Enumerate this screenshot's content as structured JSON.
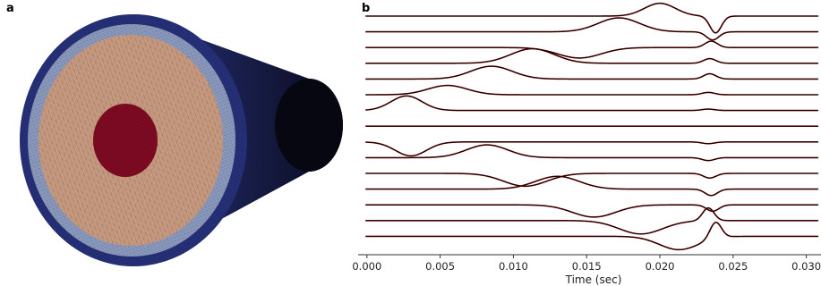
{
  "figure": {
    "panel_a_label": "a",
    "panel_b_label": "b"
  },
  "mesh": {
    "layers": [
      {
        "name": "outer-shell",
        "color": "#26317a"
      },
      {
        "name": "middle-ring",
        "color": "#8c9cc0"
      },
      {
        "name": "main-volume",
        "color": "#c89a80"
      },
      {
        "name": "core",
        "color": "#7e0a22"
      }
    ],
    "tail_gradient": [
      "#28357e",
      "#0a0a1e"
    ]
  },
  "chart_data": {
    "type": "line",
    "xlabel": "Time (sec)",
    "xlim": [
      -0.0006,
      0.031
    ],
    "xticks": [
      0.0,
      0.005,
      0.01,
      0.015,
      0.02,
      0.025,
      0.03
    ],
    "xtick_labels": [
      "0.000",
      "0.005",
      "0.010",
      "0.015",
      "0.020",
      "0.025",
      "0.030"
    ],
    "grid": false,
    "trace_colors": [
      "#000000",
      "#8b0000"
    ],
    "series": [
      {
        "pulse": {
          "t": 0.02,
          "amp": 1.1,
          "w": 0.0015
        },
        "late": {
          "t": 0.0238,
          "amp": -1.45,
          "w": 0.00055
        }
      },
      {
        "pulse": {
          "t": 0.0172,
          "amp": 1.2,
          "w": 0.002
        },
        "late": {
          "t": 0.0236,
          "amp": -0.7,
          "w": 0.0006
        }
      },
      {
        "pulse": {
          "t": 0.0145,
          "amp": -0.9,
          "w": 0.0021
        },
        "late": {
          "t": 0.0235,
          "amp": 0.55,
          "w": 0.0006
        }
      },
      {
        "pulse": {
          "t": 0.0113,
          "amp": 1.25,
          "w": 0.0021
        },
        "late": {
          "t": 0.0234,
          "amp": 0.4,
          "w": 0.0006
        }
      },
      {
        "pulse": {
          "t": 0.0085,
          "amp": 1.1,
          "w": 0.002
        },
        "late": {
          "t": 0.0234,
          "amp": 0.45,
          "w": 0.0006
        }
      },
      {
        "pulse": {
          "t": 0.0055,
          "amp": 0.8,
          "w": 0.0019
        },
        "late": {
          "t": 0.0233,
          "amp": 0.2,
          "w": 0.0006
        }
      },
      {
        "pulse": {
          "t": 0.0027,
          "amp": 1.25,
          "w": 0.0015
        },
        "late": {
          "t": 0.0233,
          "amp": 0.12,
          "w": 0.0006
        }
      },
      {
        "pulse": {
          "t": 0.0,
          "amp": 0.0,
          "w": 0.001
        },
        "late": {
          "t": 0.0233,
          "amp": 0.0,
          "w": 0.0006
        }
      },
      {
        "pulse": {
          "t": 0.003,
          "amp": -1.2,
          "w": 0.0015
        },
        "late": {
          "t": 0.0233,
          "amp": -0.15,
          "w": 0.0006
        }
      },
      {
        "pulse": {
          "t": 0.0082,
          "amp": 1.1,
          "w": 0.002
        },
        "late": {
          "t": 0.0233,
          "amp": -0.25,
          "w": 0.0006
        }
      },
      {
        "pulse": {
          "t": 0.0108,
          "amp": -1.1,
          "w": 0.0021
        },
        "late": {
          "t": 0.0234,
          "amp": -0.4,
          "w": 0.0006
        }
      },
      {
        "pulse": {
          "t": 0.013,
          "amp": 1.1,
          "w": 0.0021
        },
        "late": {
          "t": 0.0235,
          "amp": -0.55,
          "w": 0.0006
        }
      },
      {
        "pulse": {
          "t": 0.0155,
          "amp": -1.05,
          "w": 0.0021
        },
        "late": {
          "t": 0.0236,
          "amp": -0.55,
          "w": 0.0006
        }
      },
      {
        "pulse": {
          "t": 0.0187,
          "amp": -1.15,
          "w": 0.0021
        },
        "late": {
          "t": 0.0233,
          "amp": 1.1,
          "w": 0.00055
        }
      },
      {
        "pulse": {
          "t": 0.0213,
          "amp": -1.15,
          "w": 0.0019
        },
        "late": {
          "t": 0.0238,
          "amp": 1.4,
          "w": 0.00055
        }
      }
    ]
  }
}
